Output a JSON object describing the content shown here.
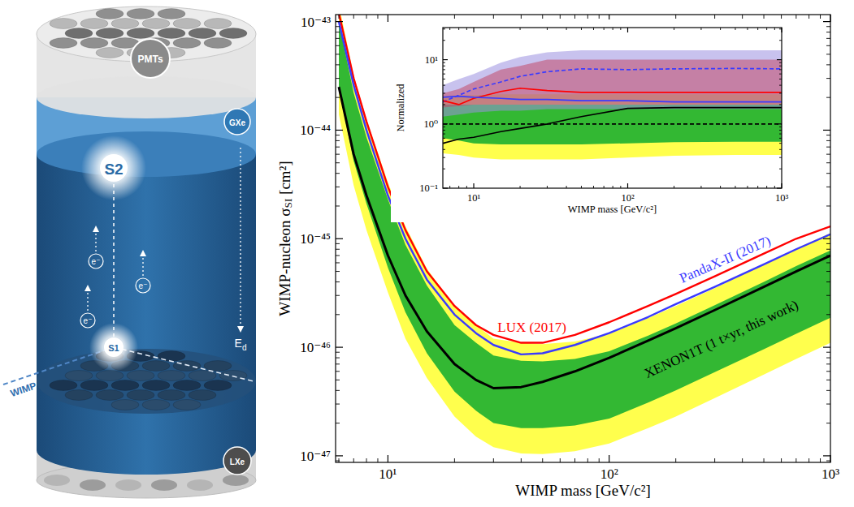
{
  "diagram": {
    "pmts": "PMTs",
    "gxe": "GXe",
    "s2": "S2",
    "s1": "S1",
    "lxe": "LXe",
    "wimp": "WIMP",
    "electron": "e⁻",
    "field": "E",
    "field_subscript": "d"
  },
  "chart_data": [
    {
      "type": "line",
      "x_label": "WIMP mass [GeV/c²]",
      "y_label": "WIMP-nucleon σ",
      "y_label_subscript": "SI",
      "y_label_unit": " [cm²]",
      "log": true,
      "xlim": [
        5.8,
        1000
      ],
      "ylim": [
        8.7e-48,
        1.16e-43
      ],
      "xticks": [
        {
          "value": 10,
          "label": "10¹"
        },
        {
          "value": 100,
          "label": "10²"
        },
        {
          "value": 1000,
          "label": "10³"
        }
      ],
      "yticks": [
        {
          "value": 1e-47,
          "label": "10⁻⁴⁷"
        },
        {
          "value": 1e-46,
          "label": "10⁻⁴⁶"
        },
        {
          "value": 1e-45,
          "label": "10⁻⁴⁵"
        },
        {
          "value": 1e-44,
          "label": "10⁻⁴⁴"
        },
        {
          "value": 1e-43,
          "label": "10⁻⁴³"
        }
      ],
      "x": [
        6,
        7,
        8,
        10,
        12,
        15,
        20,
        25,
        30,
        40,
        50,
        70,
        100,
        150,
        200,
        300,
        500,
        700,
        1000
      ],
      "series": [
        {
          "type": "band",
          "color": "#ffff4d",
          "lower": [
            1.4e-44,
            3.1e-45,
            1.2e-45,
            3.2e-46,
            1.2e-46,
            5.2e-47,
            2.3e-47,
            1.5e-47,
            1.2e-47,
            1.05e-47,
            1.04e-47,
            1.1e-47,
            1.3e-47,
            1.8e-47,
            2.3e-47,
            3.4e-47,
            5.6e-47,
            7.8e-47,
            1.1e-46
          ],
          "upper": [
            1.45e-43,
            3.2e-44,
            1.25e-44,
            3.3e-45,
            1.3e-45,
            5.3e-46,
            2.4e-46,
            1.6e-46,
            1.2e-46,
            1.1e-46,
            1.07e-46,
            1.13e-46,
            1.33e-46,
            1.86e-46,
            2.4e-46,
            3.5e-46,
            5.8e-46,
            8.1e-46,
            1.13e-45
          ]
        },
        {
          "type": "band",
          "color": "#33b833",
          "lower": [
            2.4e-44,
            5.2e-45,
            2.1e-45,
            5.4e-46,
            2.1e-46,
            8.8e-47,
            3.9e-47,
            2.6e-47,
            2e-47,
            1.8e-47,
            1.8e-47,
            1.9e-47,
            2.2e-47,
            3.1e-47,
            4e-47,
            5.9e-47,
            9.6e-47,
            1.33e-46,
            1.87e-46
          ],
          "upper": [
            1e-43,
            2.2e-44,
            8.6e-45,
            2.3e-45,
            8.8e-46,
            3.7e-46,
            1.6e-46,
            1.1e-46,
            8.4e-47,
            7.5e-47,
            7.4e-47,
            7.8e-47,
            9.2e-47,
            1.28e-46,
            1.66e-46,
            2.44e-46,
            4e-46,
            5.6e-46,
            7.8e-46
          ]
        },
        {
          "type": "line",
          "name": "LUX (2017)",
          "color": "#ff0000",
          "values": [
            1.2e-43,
            3e-44,
            1.2e-44,
            3e-45,
            1.2e-45,
            5e-46,
            2.4e-46,
            1.6e-46,
            1.3e-46,
            1.1e-46,
            1.1e-46,
            1.3e-46,
            1.7e-46,
            2.4e-46,
            3.1e-46,
            4.5e-46,
            7.3e-46,
            1e-45,
            1.3e-45
          ]
        },
        {
          "type": "line",
          "name": "PandaX-II (2017)",
          "color": "#3a3aff",
          "values": [
            1e-43,
            2.6e-44,
            1e-44,
            2.5e-45,
            1e-45,
            4.2e-46,
            2e-46,
            1.35e-46,
            1.05e-46,
            8.6e-47,
            8.8e-47,
            1.05e-46,
            1.35e-46,
            1.9e-46,
            2.5e-46,
            3.6e-46,
            5.8e-46,
            8e-46,
            1.1e-45
          ]
        },
        {
          "type": "line",
          "name": "XENON1T (1 t×yr, this work)",
          "color": "#000000",
          "values": [
            2.5e-44,
            6e-45,
            2.5e-45,
            7e-46,
            3e-46,
            1.4e-46,
            7e-47,
            5e-47,
            4.2e-47,
            4.3e-47,
            4.8e-47,
            6e-47,
            8e-47,
            1.15e-46,
            1.5e-46,
            2.2e-46,
            3.6e-46,
            5e-46,
            7e-46
          ]
        }
      ]
    },
    {
      "type": "line",
      "x_label": "WIMP mass [GeV/c²]",
      "y_label": "Normalized",
      "log": true,
      "xlim": [
        6.3,
        1000
      ],
      "ylim": [
        0.1,
        31.6
      ],
      "xticks": [
        {
          "value": 10,
          "label": "10¹"
        },
        {
          "value": 100,
          "label": "10²"
        },
        {
          "value": 1000,
          "label": "10³"
        }
      ],
      "yticks": [
        {
          "value": 0.1,
          "label": "10⁻¹"
        },
        {
          "value": 1,
          "label": "10⁰"
        },
        {
          "value": 10,
          "label": "10¹"
        }
      ],
      "x": [
        6.3,
        8,
        10,
        15,
        20,
        30,
        50,
        100,
        200,
        500,
        1000
      ],
      "series": [
        {
          "type": "band",
          "color": "#ffff4d",
          "lower": [
            0.35,
            0.33,
            0.3,
            0.28,
            0.28,
            0.28,
            0.28,
            0.3,
            0.32,
            0.33,
            0.33
          ],
          "upper": [
            2.7,
            2.8,
            2.8,
            2.9,
            2.9,
            2.9,
            2.9,
            2.9,
            2.9,
            2.9,
            2.9
          ]
        },
        {
          "type": "band",
          "color": "#33b833",
          "lower": [
            0.6,
            0.55,
            0.5,
            0.48,
            0.48,
            0.48,
            0.48,
            0.5,
            0.52,
            0.53,
            0.53
          ],
          "upper": [
            2.0,
            2.0,
            2.0,
            2.0,
            2.0,
            2.0,
            2.0,
            2.0,
            2.0,
            2.0,
            2.0
          ]
        },
        {
          "type": "band",
          "color": "#9a8fe0",
          "lower": [
            1.3,
            1.4,
            1.5,
            1.6,
            1.6,
            1.7,
            1.7,
            1.7,
            1.7,
            1.7,
            1.7
          ],
          "upper": [
            4,
            5,
            6,
            9,
            11,
            13,
            14,
            14,
            14,
            14,
            14
          ]
        },
        {
          "type": "band",
          "color": "#c24a6a",
          "lower": [
            1.8,
            1.9,
            2.0,
            2.0,
            2.0,
            2.0,
            2.0,
            2.0,
            2.0,
            2.0,
            2.0
          ],
          "upper": [
            3,
            3.5,
            4.5,
            7,
            8,
            10,
            10,
            10,
            10,
            10,
            10
          ]
        },
        {
          "type": "line",
          "color": "#000000",
          "line_style": "dashed",
          "values": [
            1,
            1,
            1,
            1,
            1,
            1,
            1,
            1,
            1,
            1,
            1
          ]
        },
        {
          "type": "line",
          "color": "#3a3aff",
          "line_style": "dashed",
          "values": [
            2.2,
            2.8,
            3.5,
            4.5,
            5.5,
            6.5,
            7.2,
            7.0,
            7.2,
            7.3,
            7.2
          ]
        },
        {
          "type": "line",
          "color": "#ff0000",
          "values": [
            2.3,
            2.0,
            2.5,
            3.2,
            3.6,
            3.3,
            3.1,
            3.1,
            3.1,
            3.1,
            3.1
          ]
        },
        {
          "type": "line",
          "color": "#3a3aff",
          "values": [
            2.6,
            2.7,
            2.6,
            2.5,
            2.4,
            2.4,
            2.3,
            2.3,
            2.2,
            2.2,
            2.2
          ]
        },
        {
          "type": "line",
          "color": "#000000",
          "values": [
            0.5,
            0.58,
            0.62,
            0.76,
            0.85,
            1.0,
            1.3,
            1.75,
            1.8,
            1.8,
            1.8
          ]
        }
      ]
    }
  ]
}
